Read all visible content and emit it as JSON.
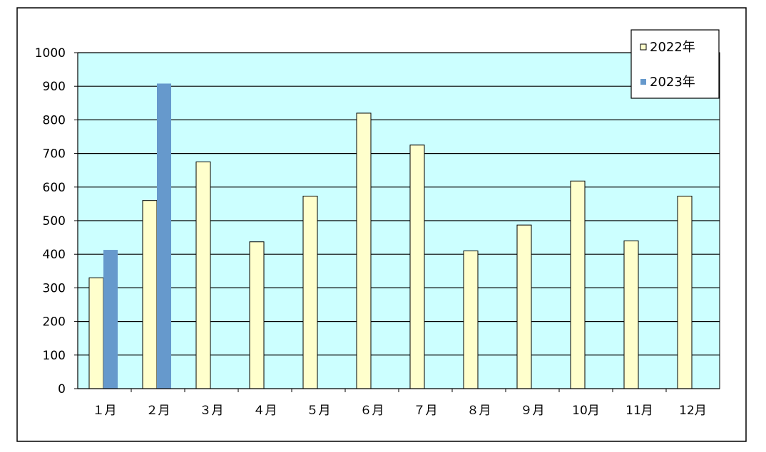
{
  "chart_data": {
    "type": "bar",
    "title": "",
    "xlabel": "",
    "ylabel": "",
    "categories": [
      "１月",
      "２月",
      "３月",
      "４月",
      "５月",
      "６月",
      "７月",
      "８月",
      "９月",
      "10月",
      "11月",
      "12月"
    ],
    "series": [
      {
        "name": "2022年",
        "color": "#ffffcc",
        "values": [
          330,
          560,
          675,
          437,
          573,
          820,
          725,
          410,
          487,
          618,
          440,
          573
        ]
      },
      {
        "name": "2023年",
        "color": "#6699cc",
        "values": [
          413,
          908,
          null,
          null,
          null,
          null,
          null,
          null,
          null,
          null,
          null,
          null
        ]
      }
    ],
    "ylim": [
      0,
      1000
    ],
    "yticks": [
      0,
      100,
      200,
      300,
      400,
      500,
      600,
      700,
      800,
      900,
      1000
    ],
    "grid": true,
    "plot_background": "#ccffff",
    "legend": {
      "position": "top-right"
    }
  }
}
